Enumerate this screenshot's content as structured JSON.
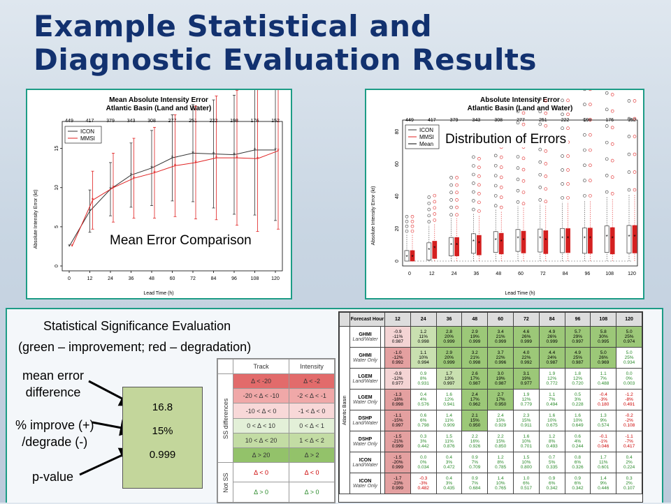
{
  "title_line1": "Example Statistical and",
  "title_line2": "Diagnostic Evaluation Results",
  "left_chart": {
    "title1": "Mean Absolute Intensity Error",
    "title2": "Atlantic Basin (Land and Water)",
    "counts": [
      "449",
      "417",
      "379",
      "343",
      "308",
      "277",
      "251",
      "222",
      "198",
      "176",
      "152"
    ],
    "ylabel": "Absolute Intensity Error (kt)",
    "xlabel": "Lead Time (h)",
    "legend": [
      "ICON",
      "MMSI"
    ],
    "caption": "Mean Error Comparison"
  },
  "right_chart": {
    "title1": "Absolute Intensity Error",
    "title2": "Atlantic Basin (Land and Water)",
    "counts": [
      "449",
      "417",
      "379",
      "343",
      "308",
      "277",
      "251",
      "222",
      "198",
      "176",
      "152"
    ],
    "ylabel": "Absolute Intensity Error (kt)",
    "xlabel": "Lead Time (h)",
    "legend": [
      "ICON",
      "MMSI",
      "Mean"
    ],
    "caption": "Distribution of Errors"
  },
  "chart_data": [
    {
      "type": "line",
      "title": "Mean Absolute Intensity Error",
      "subtitle": "Atlantic Basin (Land and Water)",
      "xlabel": "Lead Time (h)",
      "ylabel": "Absolute Intensity Error (kt)",
      "ylim": [
        0,
        18
      ],
      "x": [
        0,
        12,
        24,
        36,
        48,
        60,
        72,
        84,
        96,
        108,
        120
      ],
      "series": [
        {
          "name": "ICON",
          "color": "#333333",
          "values": [
            2.5,
            7.0,
            9.8,
            11.6,
            12.5,
            13.8,
            14.4,
            14.3,
            14.2,
            14.8,
            14.8
          ]
        },
        {
          "name": "MMSI",
          "color": "#e02020",
          "values": [
            2.5,
            8.4,
            10.0,
            11.2,
            11.9,
            12.8,
            13.2,
            13.8,
            13.8,
            13.7,
            14.7
          ]
        }
      ]
    },
    {
      "type": "scatter",
      "title": "Absolute Intensity Error",
      "subtitle": "Atlantic Basin (Land and Water)",
      "xlabel": "Lead Time (h)",
      "ylabel": "Absolute Intensity Error (kt)",
      "ylim": [
        0,
        85
      ],
      "x": [
        0,
        12,
        24,
        36,
        48,
        60,
        72,
        84,
        96,
        108,
        120
      ],
      "series": [
        {
          "name": "ICON",
          "color": "#333333",
          "values": [
            2.5,
            7,
            10,
            12,
            13,
            14,
            14,
            14,
            14,
            15,
            15
          ]
        },
        {
          "name": "MMSI",
          "color": "#e02020",
          "values": [
            2.5,
            8,
            10,
            11,
            12,
            13,
            13,
            14,
            14,
            14,
            15
          ]
        }
      ]
    }
  ],
  "sig": {
    "title1": "Statistical Significance Evaluation",
    "title2": "(green – improvement; red – degradation)",
    "label_mean1": "mean error",
    "label_mean2": "difference",
    "label_pct1": "% improve (+)",
    "label_pct2": "/degrade (-)",
    "label_p": "p-value",
    "v1": "16.8",
    "v2": "15%",
    "v3": "0.999"
  },
  "legend_tbl": {
    "h1": "Track",
    "h2": "Intensity",
    "side1": "SS differences",
    "side2": "Not SS",
    "rows": [
      [
        "Δ < -20",
        "Δ < -2"
      ],
      [
        "-20 < Δ < -10",
        "-2 < Δ < -1"
      ],
      [
        "-10 < Δ < 0",
        "-1 < Δ < 0"
      ],
      [
        "0 < Δ < 10",
        "0 < Δ < 1"
      ],
      [
        "10 < Δ < 20",
        "1 < Δ < 2"
      ],
      [
        "Δ > 20",
        "Δ > 2"
      ],
      [
        "Δ < 0",
        "Δ < 0"
      ],
      [
        "Δ > 0",
        "Δ > 0"
      ]
    ]
  },
  "ft": {
    "corner": "Forecast Hour",
    "side": "Atlantic Basin",
    "hours": [
      "12",
      "24",
      "36",
      "48",
      "60",
      "72",
      "84",
      "96",
      "108",
      "120"
    ],
    "rows": [
      {
        "name": "GHMI",
        "sub": "Land/Water",
        "c": [
          [
            "-0.9",
            "-11%",
            "0.987"
          ],
          [
            "1.2",
            "11%",
            "0.998"
          ],
          [
            "2.8",
            "20%",
            "0.999"
          ],
          [
            "2.9",
            "19%",
            "0.999"
          ],
          [
            "3.4",
            "21%",
            "0.999"
          ],
          [
            "4.6",
            "26%",
            "0.999"
          ],
          [
            "4.9",
            "26%",
            "0.999"
          ],
          [
            "5.7",
            "29%",
            "0.997"
          ],
          [
            "5.8",
            "30%",
            "0.995"
          ],
          [
            "5.0",
            "25%",
            "0.974"
          ]
        ]
      },
      {
        "name": "GHMI",
        "sub": "Water Only",
        "c": [
          [
            "-1.0",
            "-12%",
            "0.992"
          ],
          [
            "1.1",
            "10%",
            "0.994"
          ],
          [
            "2.9",
            "20%",
            "0.999"
          ],
          [
            "3.2",
            "21%",
            "0.998"
          ],
          [
            "3.7",
            "22%",
            "0.996"
          ],
          [
            "4.0",
            "22%",
            "0.992"
          ],
          [
            "4.4",
            "24%",
            "0.987"
          ],
          [
            "4.9",
            "25%",
            "0.987"
          ],
          [
            "5.0",
            "26%",
            "0.969"
          ],
          [
            "5.0",
            "25%",
            "0.934"
          ]
        ]
      },
      {
        "name": "LGEM",
        "sub": "Land/Water",
        "c": [
          [
            "-0.9",
            "-12%",
            "0.977"
          ],
          [
            "0.9",
            "8%",
            "0.931"
          ],
          [
            "1.7",
            "13%",
            "0.997"
          ],
          [
            "2.6",
            "17%",
            "0.987"
          ],
          [
            "3.0",
            "19%",
            "0.987"
          ],
          [
            "3.1",
            "19%",
            "0.977"
          ],
          [
            "1.9",
            "12%",
            "0.772"
          ],
          [
            "1.8",
            "12%",
            "0.720"
          ],
          [
            "1.1",
            "7%",
            "0.488"
          ],
          [
            "0.0",
            "0%",
            "0.003"
          ]
        ]
      },
      {
        "name": "LGEM",
        "sub": "Water Only",
        "c": [
          [
            "-1.3",
            "-18%",
            "0.998"
          ],
          [
            "0.4",
            "4%",
            "0.576"
          ],
          [
            "1.6",
            "12%",
            "0.941"
          ],
          [
            "2.4",
            "17%",
            "0.962"
          ],
          [
            "2.7",
            "17%",
            "0.950"
          ],
          [
            "1.9",
            "12%",
            "0.779"
          ],
          [
            "1.1",
            "7%",
            "0.494"
          ],
          [
            "0.5",
            "3%",
            "0.228"
          ],
          [
            "-0.4",
            "-3%",
            "0.180"
          ],
          [
            "-1.2",
            "-8%",
            "0.491"
          ]
        ]
      },
      {
        "name": "DSHP",
        "sub": "Land/Water",
        "c": [
          [
            "-1.1",
            "-15%",
            "0.997"
          ],
          [
            "0.6",
            "6%",
            "0.798"
          ],
          [
            "1.4",
            "11%",
            "0.909"
          ],
          [
            "2.1",
            "15%",
            "0.950"
          ],
          [
            "2.4",
            "15%",
            "0.929"
          ],
          [
            "2.3",
            "15%",
            "0.911"
          ],
          [
            "1.6",
            "10%",
            "0.675"
          ],
          [
            "1.6",
            "10%",
            "0.649"
          ],
          [
            "1.3",
            "9%",
            "0.574"
          ],
          [
            "-0.2",
            "-2%",
            "0.108"
          ]
        ]
      },
      {
        "name": "DSHP",
        "sub": "Water Only",
        "c": [
          [
            "-1.5",
            "-21%",
            "0.999"
          ],
          [
            "0.3",
            "3%",
            "0.442"
          ],
          [
            "1.5",
            "11%",
            "0.876"
          ],
          [
            "2.2",
            "16%",
            "0.926"
          ],
          [
            "2.2",
            "15%",
            "0.850"
          ],
          [
            "1.6",
            "10%",
            "0.701"
          ],
          [
            "1.2",
            "8%",
            "0.493"
          ],
          [
            "0.6",
            "4%",
            "0.244"
          ],
          [
            "-0.1",
            "-1%",
            "0.046"
          ],
          [
            "-1.1",
            "-7%",
            "0.417"
          ]
        ]
      },
      {
        "name": "ICON",
        "sub": "Land/Water",
        "c": [
          [
            "-1.5",
            "-20%",
            "0.999"
          ],
          [
            "0.0",
            "0%",
            "0.034"
          ],
          [
            "0.4",
            "3%",
            "0.472"
          ],
          [
            "0.9",
            "7%",
            "0.709"
          ],
          [
            "1.2",
            "8%",
            "0.785"
          ],
          [
            "1.5",
            "10%",
            "0.800"
          ],
          [
            "0.7",
            "5%",
            "0.335"
          ],
          [
            "0.8",
            "6%",
            "0.326"
          ],
          [
            "1.7",
            "11%",
            "0.601"
          ],
          [
            "0.4",
            "2%",
            "0.224"
          ]
        ]
      },
      {
        "name": "ICON",
        "sub": "Water Only",
        "c": [
          [
            "-1.7",
            "-23%",
            "0.999"
          ],
          [
            "-0.3",
            "-3%",
            "0.482"
          ],
          [
            "0.4",
            "3%",
            "0.435"
          ],
          [
            "0.9",
            "7%",
            "0.684"
          ],
          [
            "1.4",
            "10%",
            "0.765"
          ],
          [
            "1.0",
            "6%",
            "0.517"
          ],
          [
            "0.9",
            "6%",
            "0.342"
          ],
          [
            "0.9",
            "6%",
            "0.342"
          ],
          [
            "1.4",
            "9%",
            "0.446"
          ],
          [
            "0.3",
            "2%",
            "0.107"
          ]
        ]
      }
    ]
  }
}
